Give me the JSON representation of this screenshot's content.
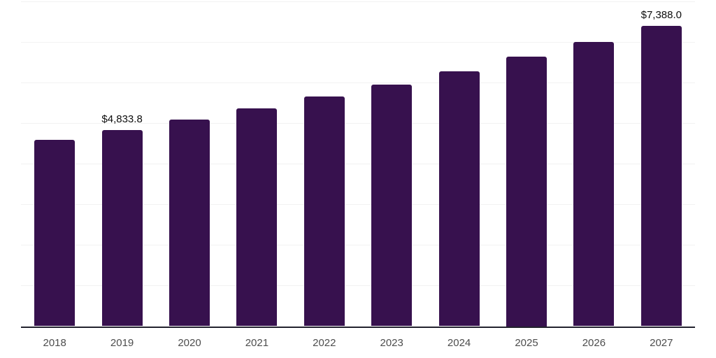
{
  "chart_data": {
    "type": "bar",
    "title": "",
    "categories": [
      "2018",
      "2019",
      "2020",
      "2021",
      "2022",
      "2023",
      "2024",
      "2025",
      "2026",
      "2027"
    ],
    "values": [
      4588,
      4833.8,
      5092,
      5362,
      5648,
      5952,
      6277,
      6625,
      6995,
      7388.0
    ],
    "value_labels": [
      "",
      "$4,833.8",
      "",
      "",
      "",
      "",
      "",
      "",
      "",
      "$7,388.0"
    ],
    "xlabel": "",
    "ylabel": "",
    "ylim": [
      0,
      8000
    ],
    "gridline_step": 1000,
    "grid": "horizontal",
    "legend": "none",
    "bar_color": "#37114E"
  },
  "style": {
    "background_color": "#ffffff",
    "grid_color": "#f2f2f2",
    "axis_color": "#23232E",
    "tick_label_color": "#4d4d4d",
    "value_label_color": "#0d0d0d"
  }
}
